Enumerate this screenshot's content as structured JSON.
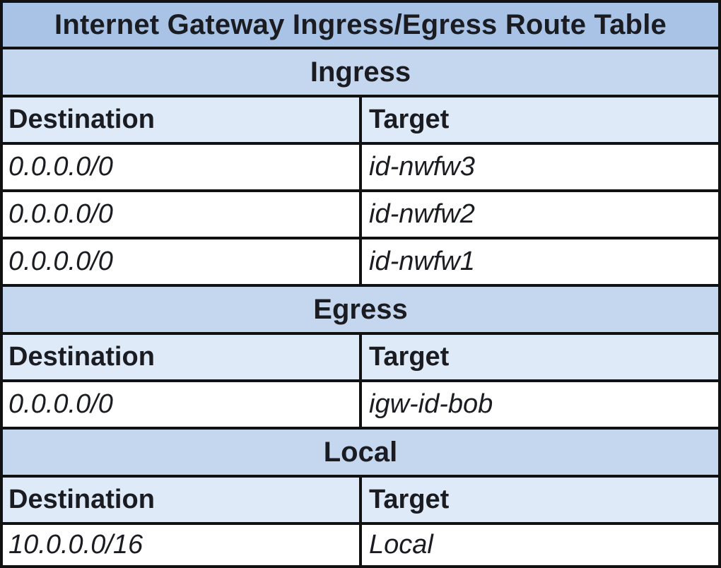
{
  "title": "Internet Gateway Ingress/Egress Route Table",
  "sections": [
    {
      "label": "Ingress",
      "header": {
        "destination": "Destination",
        "target": "Target"
      },
      "rows": [
        {
          "destination": "0.0.0.0/0",
          "target": "id-nwfw3"
        },
        {
          "destination": "0.0.0.0/0",
          "target": "id-nwfw2"
        },
        {
          "destination": "0.0.0.0/0",
          "target": "id-nwfw1"
        }
      ]
    },
    {
      "label": "Egress",
      "header": {
        "destination": "Destination",
        "target": "Target"
      },
      "rows": [
        {
          "destination": "0.0.0.0/0",
          "target": "igw-id-bob"
        }
      ]
    },
    {
      "label": "Local",
      "header": {
        "destination": "Destination",
        "target": "Target"
      },
      "rows": [
        {
          "destination": "10.0.0.0/16",
          "target": "Local"
        }
      ]
    }
  ],
  "colors": {
    "title_bg": "#a9c3e6",
    "section_bg": "#c5d7ef",
    "header_bg": "#deeaf7",
    "row_bg": "#ffffff",
    "border": "#111111"
  }
}
